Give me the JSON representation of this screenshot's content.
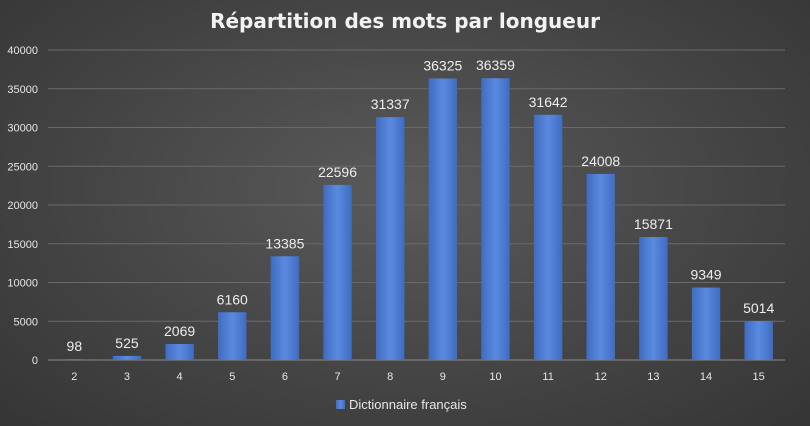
{
  "chart_data": {
    "type": "bar",
    "title": "Répartition des mots par longueur",
    "xlabel": "",
    "ylabel": "",
    "categories": [
      "2",
      "3",
      "4",
      "5",
      "6",
      "7",
      "8",
      "9",
      "10",
      "11",
      "12",
      "13",
      "14",
      "15"
    ],
    "series": [
      {
        "name": "Dictionnaire français",
        "values": [
          98,
          525,
          2069,
          6160,
          13385,
          22596,
          31337,
          36325,
          36359,
          31642,
          24008,
          15871,
          9349,
          5014
        ]
      }
    ],
    "ylim": [
      0,
      40000
    ],
    "yticks": [
      0,
      5000,
      10000,
      15000,
      20000,
      25000,
      30000,
      35000,
      40000
    ],
    "grid": true,
    "legend_position": "bottom",
    "data_labels": true,
    "bar_color": "#4a78cc",
    "bar_color_light": "#5b8ce0"
  }
}
